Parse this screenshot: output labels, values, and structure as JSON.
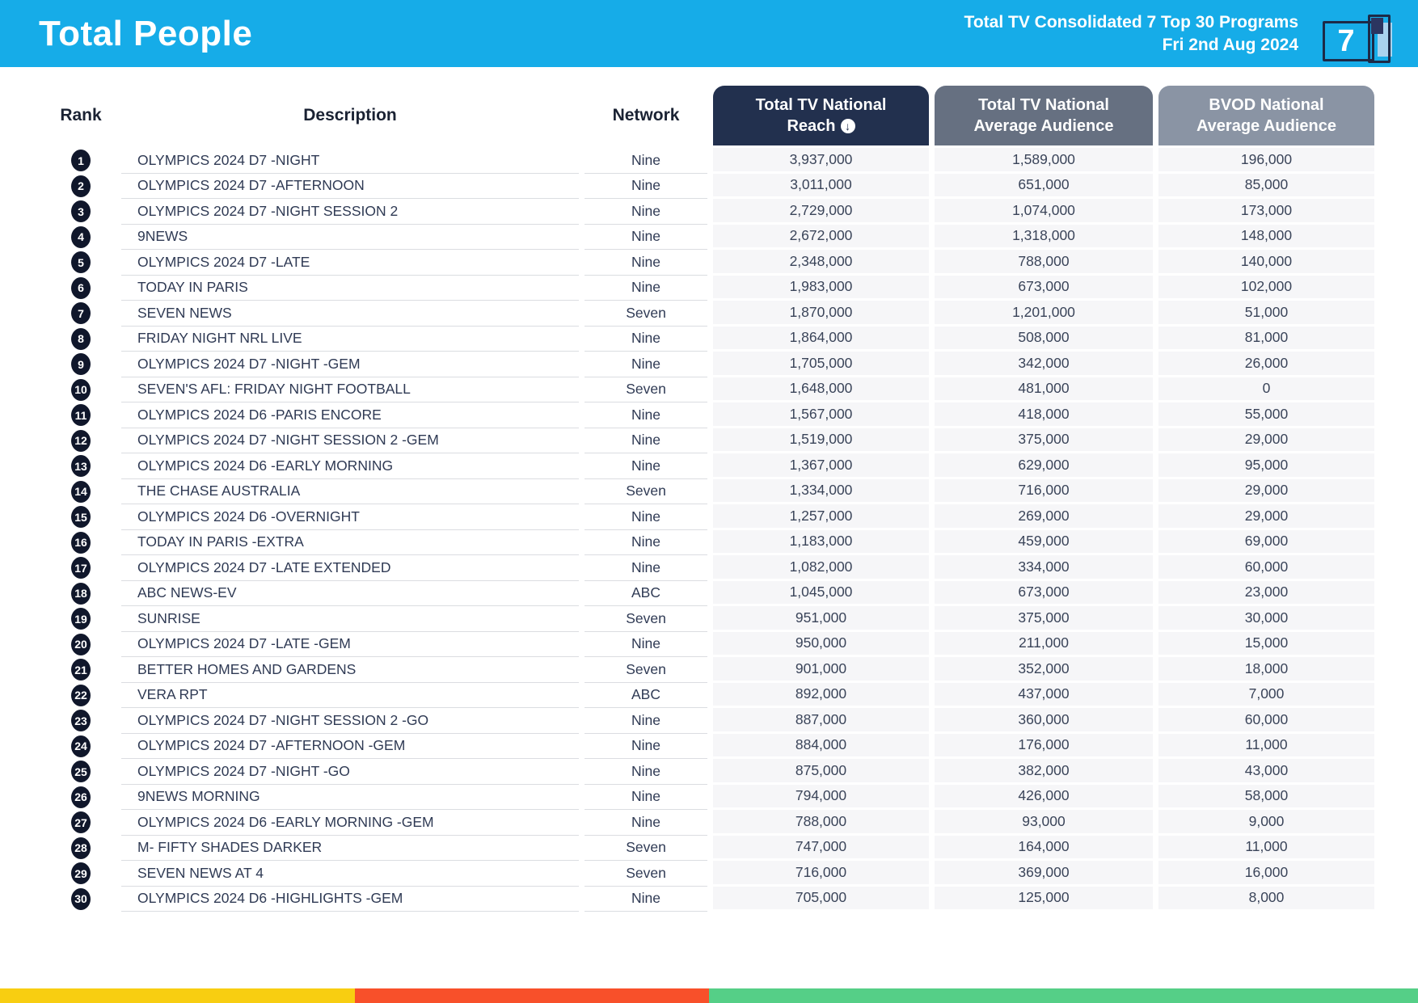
{
  "colors": {
    "topbar_bg": "#16ACE8",
    "pill_reach_bg": "#22304E",
    "pill_avg_bg": "#667081",
    "pill_bvod_bg": "#8A94A4",
    "row_value_bg": "#F6F6F8",
    "rank_badge_bg": "#10172B"
  },
  "topbar": {
    "title": "Total People",
    "subtitle_line1": "Total TV Consolidated 7 Top 30 Programs",
    "subtitle_line2": "Fri 2nd Aug 2024",
    "logo_text": "7"
  },
  "table": {
    "columns": {
      "rank": "Rank",
      "description": "Description",
      "network": "Network",
      "reach_line1": "Total TV National",
      "reach_line2": "Reach",
      "avg_line1": "Total TV National",
      "avg_line2": "Average Audience",
      "bvod_line1": "BVOD National",
      "bvod_line2": "Average Audience"
    },
    "sort_icon_glyph": "↓",
    "sorted_by": "Total TV National Reach",
    "rows": [
      {
        "rank": "1",
        "description": "OLYMPICS 2024 D7 -NIGHT",
        "network": "Nine",
        "reach": "3,937,000",
        "avg_audience": "1,589,000",
        "bvod_audience": "196,000"
      },
      {
        "rank": "2",
        "description": "OLYMPICS 2024 D7 -AFTERNOON",
        "network": "Nine",
        "reach": "3,011,000",
        "avg_audience": "651,000",
        "bvod_audience": "85,000"
      },
      {
        "rank": "3",
        "description": "OLYMPICS 2024 D7 -NIGHT SESSION 2",
        "network": "Nine",
        "reach": "2,729,000",
        "avg_audience": "1,074,000",
        "bvod_audience": "173,000"
      },
      {
        "rank": "4",
        "description": "9NEWS",
        "network": "Nine",
        "reach": "2,672,000",
        "avg_audience": "1,318,000",
        "bvod_audience": "148,000"
      },
      {
        "rank": "5",
        "description": "OLYMPICS 2024 D7 -LATE",
        "network": "Nine",
        "reach": "2,348,000",
        "avg_audience": "788,000",
        "bvod_audience": "140,000"
      },
      {
        "rank": "6",
        "description": "TODAY IN PARIS",
        "network": "Nine",
        "reach": "1,983,000",
        "avg_audience": "673,000",
        "bvod_audience": "102,000"
      },
      {
        "rank": "7",
        "description": "SEVEN NEWS",
        "network": "Seven",
        "reach": "1,870,000",
        "avg_audience": "1,201,000",
        "bvod_audience": "51,000"
      },
      {
        "rank": "8",
        "description": "FRIDAY NIGHT NRL LIVE",
        "network": "Nine",
        "reach": "1,864,000",
        "avg_audience": "508,000",
        "bvod_audience": "81,000"
      },
      {
        "rank": "9",
        "description": "OLYMPICS 2024 D7 -NIGHT -GEM",
        "network": "Nine",
        "reach": "1,705,000",
        "avg_audience": "342,000",
        "bvod_audience": "26,000"
      },
      {
        "rank": "10",
        "description": "SEVEN'S AFL: FRIDAY NIGHT FOOTBALL",
        "network": "Seven",
        "reach": "1,648,000",
        "avg_audience": "481,000",
        "bvod_audience": "0"
      },
      {
        "rank": "11",
        "description": "OLYMPICS 2024 D6 -PARIS ENCORE",
        "network": "Nine",
        "reach": "1,567,000",
        "avg_audience": "418,000",
        "bvod_audience": "55,000"
      },
      {
        "rank": "12",
        "description": "OLYMPICS 2024 D7 -NIGHT SESSION 2 -GEM",
        "network": "Nine",
        "reach": "1,519,000",
        "avg_audience": "375,000",
        "bvod_audience": "29,000"
      },
      {
        "rank": "13",
        "description": "OLYMPICS 2024 D6 -EARLY MORNING",
        "network": "Nine",
        "reach": "1,367,000",
        "avg_audience": "629,000",
        "bvod_audience": "95,000"
      },
      {
        "rank": "14",
        "description": "THE CHASE AUSTRALIA",
        "network": "Seven",
        "reach": "1,334,000",
        "avg_audience": "716,000",
        "bvod_audience": "29,000"
      },
      {
        "rank": "15",
        "description": "OLYMPICS 2024 D6 -OVERNIGHT",
        "network": "Nine",
        "reach": "1,257,000",
        "avg_audience": "269,000",
        "bvod_audience": "29,000"
      },
      {
        "rank": "16",
        "description": "TODAY IN PARIS -EXTRA",
        "network": "Nine",
        "reach": "1,183,000",
        "avg_audience": "459,000",
        "bvod_audience": "69,000"
      },
      {
        "rank": "17",
        "description": "OLYMPICS 2024 D7 -LATE EXTENDED",
        "network": "Nine",
        "reach": "1,082,000",
        "avg_audience": "334,000",
        "bvod_audience": "60,000"
      },
      {
        "rank": "18",
        "description": "ABC NEWS-EV",
        "network": "ABC",
        "reach": "1,045,000",
        "avg_audience": "673,000",
        "bvod_audience": "23,000"
      },
      {
        "rank": "19",
        "description": "SUNRISE",
        "network": "Seven",
        "reach": "951,000",
        "avg_audience": "375,000",
        "bvod_audience": "30,000"
      },
      {
        "rank": "20",
        "description": "OLYMPICS 2024 D7 -LATE -GEM",
        "network": "Nine",
        "reach": "950,000",
        "avg_audience": "211,000",
        "bvod_audience": "15,000"
      },
      {
        "rank": "21",
        "description": "BETTER HOMES AND GARDENS",
        "network": "Seven",
        "reach": "901,000",
        "avg_audience": "352,000",
        "bvod_audience": "18,000"
      },
      {
        "rank": "22",
        "description": "VERA RPT",
        "network": "ABC",
        "reach": "892,000",
        "avg_audience": "437,000",
        "bvod_audience": "7,000"
      },
      {
        "rank": "23",
        "description": "OLYMPICS 2024 D7 -NIGHT SESSION 2 -GO",
        "network": "Nine",
        "reach": "887,000",
        "avg_audience": "360,000",
        "bvod_audience": "60,000"
      },
      {
        "rank": "24",
        "description": "OLYMPICS 2024 D7 -AFTERNOON -GEM",
        "network": "Nine",
        "reach": "884,000",
        "avg_audience": "176,000",
        "bvod_audience": "11,000"
      },
      {
        "rank": "25",
        "description": "OLYMPICS 2024 D7 -NIGHT -GO",
        "network": "Nine",
        "reach": "875,000",
        "avg_audience": "382,000",
        "bvod_audience": "43,000"
      },
      {
        "rank": "26",
        "description": "9NEWS MORNING",
        "network": "Nine",
        "reach": "794,000",
        "avg_audience": "426,000",
        "bvod_audience": "58,000"
      },
      {
        "rank": "27",
        "description": "OLYMPICS 2024 D6 -EARLY MORNING -GEM",
        "network": "Nine",
        "reach": "788,000",
        "avg_audience": "93,000",
        "bvod_audience": "9,000"
      },
      {
        "rank": "28",
        "description": "M- FIFTY SHADES DARKER",
        "network": "Seven",
        "reach": "747,000",
        "avg_audience": "164,000",
        "bvod_audience": "11,000"
      },
      {
        "rank": "29",
        "description": "SEVEN NEWS AT 4",
        "network": "Seven",
        "reach": "716,000",
        "avg_audience": "369,000",
        "bvod_audience": "16,000"
      },
      {
        "rank": "30",
        "description": "OLYMPICS 2024 D6 -HIGHLIGHTS -GEM",
        "network": "Nine",
        "reach": "705,000",
        "avg_audience": "125,000",
        "bvod_audience": "8,000"
      }
    ]
  },
  "footer_bar": {
    "segments": [
      {
        "name": "yellow",
        "color": "#F8CE11",
        "width": "25%"
      },
      {
        "name": "red",
        "color": "#F8502A",
        "width": "25%"
      },
      {
        "name": "green",
        "color": "#55CF87",
        "width": "50%"
      }
    ]
  }
}
